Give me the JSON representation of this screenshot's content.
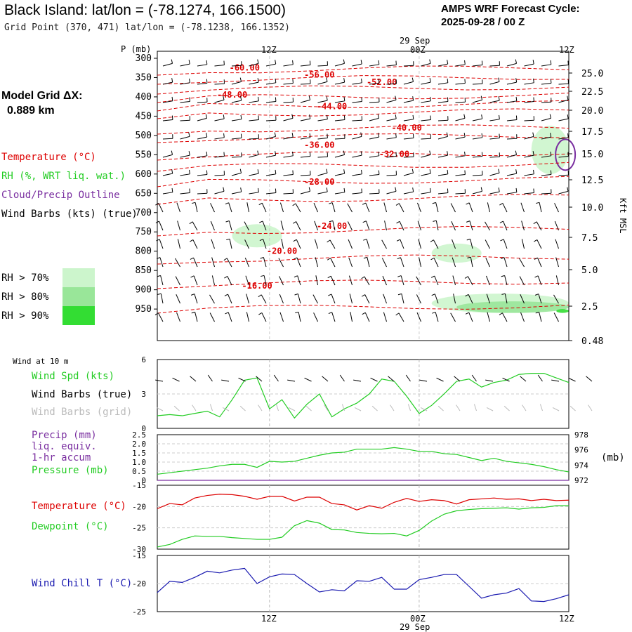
{
  "header": {
    "title": "Black Island:  lat/lon = (-78.1274, 166.1500)",
    "grid_point": "Grid Point (370, 471) lat/lon = (-78.1238, 166.1352)",
    "cycle_line1": "AMPS WRF Forecast Cycle:",
    "cycle_line2": "2025-09-28 / 00  Z",
    "grid_dx_line1": "Model Grid ΔX:",
    "grid_dx_line2": "0.889 km"
  },
  "legend": {
    "temperature": "Temperature (°C)",
    "rh": "RH (%, WRT liq. wat.)",
    "cloud": "Cloud/Precip Outline",
    "wind": "Wind Barbs (kts) (true)",
    "rh70": "RH > 70%",
    "rh80": "RH > 80%",
    "rh90": "RH > 90%",
    "rh70_color": "#ccf5cc",
    "rh80_color": "#99e699",
    "rh90_color": "#33dd33"
  },
  "time_axis": {
    "top_labels": [
      "12Z",
      "00Z",
      "12Z"
    ],
    "date_label": "29 Sep",
    "bottom_labels": [
      "12Z",
      "00Z",
      "12Z"
    ],
    "bottom_date": "29 Sep"
  },
  "colors": {
    "temperature": "#dd0000",
    "green": "#22cc22",
    "purple": "#7a2fa0",
    "blue": "#1a1ab0",
    "grid": "#999999"
  },
  "panels": {
    "wind10m": {
      "title": "Wind at 10 m",
      "spd": "Wind Spd (kts)",
      "barbs_true": "Wind Barbs (true)",
      "barbs_grid": "Wind Barbs (grid)",
      "yticks": [
        "6",
        "3",
        "0"
      ]
    },
    "precip": {
      "l1": "Precip (mm)",
      "l2": "liq. equiv.",
      "l3": "1-hr accum",
      "l4": "Pressure (mb)",
      "yticks_left": [
        "2.5",
        "2.0",
        "1.5",
        "1.0",
        "0.5",
        "0"
      ],
      "yticks_right": [
        "978",
        "976",
        "974",
        "972"
      ],
      "unit": "(mb)"
    },
    "temp": {
      "l1": "Temperature (°C)",
      "l2": "Dewpoint (°C)",
      "yticks": [
        "-15",
        "-20",
        "-25",
        "-30"
      ]
    },
    "chill": {
      "l1": "Wind Chill T (°C)",
      "yticks": [
        "-15",
        "-20",
        "-25"
      ]
    }
  },
  "chart_data": [
    {
      "type": "heatmap",
      "x_unit": "forecast hour",
      "x_range": [
        3,
        36
      ],
      "y_axis_left": {
        "label": "P (mb)",
        "ticks": [
          "300",
          "350",
          "400",
          "450",
          "500",
          "550",
          "600",
          "650",
          "700",
          "750",
          "800",
          "850",
          "900",
          "950"
        ]
      },
      "y_axis_right": {
        "label": "Kft MSL",
        "ticks": [
          "25.0",
          "22.5",
          "20.0",
          "17.5",
          "15.0",
          "12.5",
          "10.0",
          "7.5",
          "5.0",
          "2.5",
          "0.48"
        ]
      },
      "temperature_contours": [
        {
          "label": "-60.00",
          "at": [
            10,
            325
          ]
        },
        {
          "label": "-56.00",
          "at": [
            16,
            343
          ]
        },
        {
          "label": "-52.00",
          "at": [
            21,
            362
          ]
        },
        {
          "label": "-48.00",
          "at": [
            9,
            395
          ]
        },
        {
          "label": "-44.00",
          "at": [
            17,
            425
          ]
        },
        {
          "label": "-40.00",
          "at": [
            23,
            480
          ]
        },
        {
          "label": "-36.00",
          "at": [
            16,
            525
          ]
        },
        {
          "label": "-32.00",
          "at": [
            22,
            548
          ]
        },
        {
          "label": "-28.00",
          "at": [
            16,
            620
          ]
        },
        {
          "label": "-24.00",
          "at": [
            17,
            735
          ]
        },
        {
          "label": "-20.00",
          "at": [
            13,
            800
          ]
        },
        {
          "label": "-16.00",
          "at": [
            11,
            890
          ]
        }
      ],
      "rh_regions": [
        {
          "threshold": ">70%",
          "hours": [
            9,
            13
          ],
          "p": [
            730,
            790
          ]
        },
        {
          "threshold": ">70%",
          "hours": [
            25,
            29
          ],
          "p": [
            780,
            830
          ]
        },
        {
          "threshold": ">70%",
          "hours": [
            33,
            36
          ],
          "p": [
            475,
            600
          ]
        },
        {
          "threshold": ">70%",
          "hours": [
            25,
            36
          ],
          "p": [
            910,
            960
          ]
        },
        {
          "threshold": ">80%",
          "hours": [
            27,
            36
          ],
          "p": [
            930,
            960
          ]
        },
        {
          "threshold": ">90%",
          "hours": [
            35,
            36
          ],
          "p": [
            950,
            960
          ]
        }
      ],
      "cloud_outline": {
        "hours": [
          35,
          36
        ],
        "p": [
          510,
          590
        ]
      }
    },
    {
      "type": "line",
      "x": [
        3,
        4,
        5,
        6,
        7,
        8,
        9,
        10,
        11,
        12,
        13,
        14,
        15,
        16,
        17,
        18,
        19,
        20,
        21,
        22,
        23,
        24,
        25,
        26,
        27,
        28,
        29,
        30,
        31,
        32,
        33,
        34,
        35,
        36
      ],
      "series": [
        {
          "name": "Wind Spd (kts)",
          "values": [
            1.1,
            1.2,
            1.1,
            1.3,
            1.5,
            1.0,
            2.5,
            4.2,
            4.4,
            1.7,
            2.5,
            0.9,
            2.1,
            3.0,
            1.0,
            1.7,
            2.2,
            3.0,
            4.3,
            4.1,
            2.8,
            1.3,
            2.0,
            3.0,
            4.1,
            4.3,
            3.6,
            4.0,
            4.2,
            4.7,
            4.8,
            4.8,
            4.4,
            4.0
          ]
        }
      ],
      "ylim": [
        0,
        6
      ]
    },
    {
      "type": "line",
      "x": [
        3,
        4,
        5,
        6,
        7,
        8,
        9,
        10,
        11,
        12,
        13,
        14,
        15,
        16,
        17,
        18,
        19,
        20,
        21,
        22,
        23,
        24,
        25,
        26,
        27,
        28,
        29,
        30,
        31,
        32,
        33,
        34,
        35,
        36
      ],
      "series": [
        {
          "name": "Precip (mm)",
          "values": [
            0,
            0,
            0,
            0,
            0,
            0,
            0,
            0,
            0,
            0,
            0,
            0,
            0,
            0,
            0,
            0,
            0,
            0,
            0,
            0,
            0,
            0,
            0,
            0,
            0,
            0,
            0,
            0,
            0,
            0,
            0,
            0,
            0,
            0
          ]
        },
        {
          "name": "Pressure (mb)",
          "values": [
            972.8,
            973.0,
            973.2,
            973.4,
            973.6,
            973.9,
            974.1,
            974.1,
            973.7,
            974.5,
            974.4,
            974.5,
            974.9,
            975.3,
            975.6,
            975.7,
            976.1,
            976.1,
            976.1,
            976.3,
            976.1,
            975.8,
            975.8,
            975.5,
            975.4,
            975.0,
            974.6,
            974.9,
            974.5,
            974.3,
            974.1,
            973.8,
            973.4,
            973.1
          ]
        }
      ],
      "ylim": [
        0,
        2.5
      ],
      "ylim_right": [
        972,
        978
      ]
    },
    {
      "type": "line",
      "x": [
        3,
        4,
        5,
        6,
        7,
        8,
        9,
        10,
        11,
        12,
        13,
        14,
        15,
        16,
        17,
        18,
        19,
        20,
        21,
        22,
        23,
        24,
        25,
        26,
        27,
        28,
        29,
        30,
        31,
        32,
        33,
        34,
        35,
        36
      ],
      "series": [
        {
          "name": "Temperature (°C)",
          "values": [
            -20.5,
            -19.3,
            -19.6,
            -18.0,
            -17.4,
            -17.1,
            -17.2,
            -17.6,
            -18.3,
            -17.6,
            -17.6,
            -18.7,
            -17.8,
            -17.8,
            -19.3,
            -19.6,
            -20.8,
            -19.8,
            -20.4,
            -19.0,
            -18.1,
            -18.8,
            -18.4,
            -18.6,
            -19.4,
            -18.4,
            -18.2,
            -18.0,
            -18.3,
            -18.2,
            -18.6,
            -18.3,
            -18.6,
            -18.5
          ]
        },
        {
          "name": "Dewpoint (°C)",
          "values": [
            -29.5,
            -28.9,
            -27.7,
            -26.9,
            -27.0,
            -27.0,
            -27.3,
            -27.5,
            -27.7,
            -27.7,
            -27.2,
            -24.5,
            -23.3,
            -23.9,
            -25.4,
            -25.5,
            -26.1,
            -26.3,
            -26.4,
            -26.3,
            -26.9,
            -25.6,
            -23.4,
            -21.8,
            -21.0,
            -20.7,
            -20.5,
            -20.4,
            -20.3,
            -20.6,
            -20.3,
            -20.2,
            -19.8,
            -19.8
          ]
        }
      ],
      "ylim": [
        -30,
        -15
      ]
    },
    {
      "type": "line",
      "x": [
        3,
        4,
        5,
        6,
        7,
        8,
        9,
        10,
        11,
        12,
        13,
        14,
        15,
        16,
        17,
        18,
        19,
        20,
        21,
        22,
        23,
        24,
        25,
        26,
        27,
        28,
        29,
        30,
        31,
        32,
        33,
        34,
        35,
        36
      ],
      "series": [
        {
          "name": "Wind Chill T (°C)",
          "values": [
            -21.6,
            -19.6,
            -19.8,
            -18.9,
            -17.8,
            -18.1,
            -17.6,
            -17.3,
            -20.0,
            -18.8,
            -18.3,
            -18.4,
            -20.0,
            -21.5,
            -21.1,
            -21.3,
            -19.5,
            -19.6,
            -18.9,
            -21.0,
            -21.0,
            -19.3,
            -18.9,
            -18.4,
            -18.4,
            -20.5,
            -22.6,
            -22.0,
            -21.7,
            -20.9,
            -23.1,
            -23.2,
            -22.7,
            -22.0
          ]
        }
      ],
      "ylim": [
        -25,
        -15
      ]
    }
  ]
}
